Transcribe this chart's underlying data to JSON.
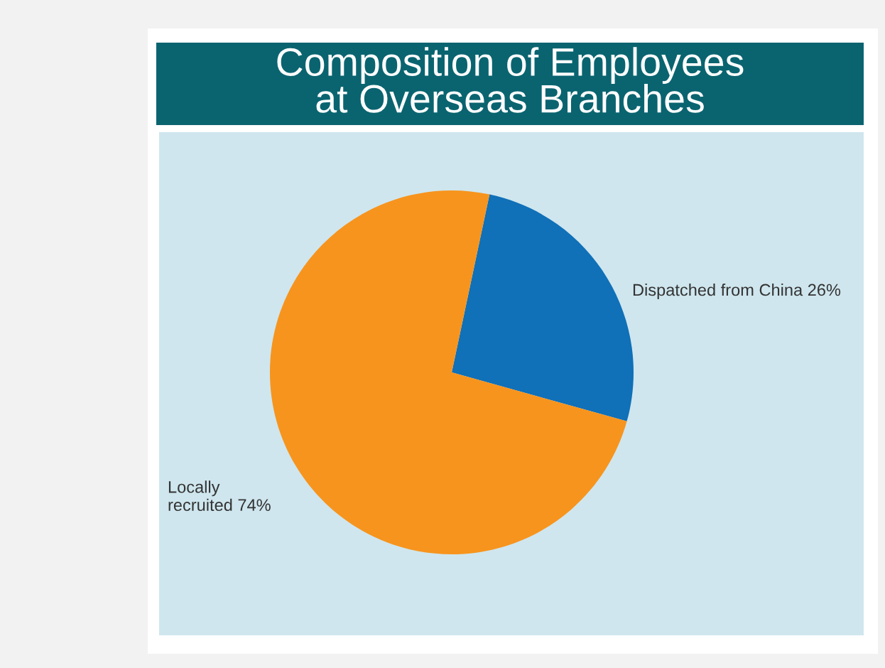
{
  "chart_data": {
    "type": "pie",
    "title": "Composition of Employees\nat Overseas Branches",
    "categories": [
      "Dispatched from China 26%",
      "Locally\nrecruited 74%"
    ],
    "values": [
      26,
      74
    ],
    "colors": [
      "#1070b8",
      "#f7941d"
    ]
  }
}
